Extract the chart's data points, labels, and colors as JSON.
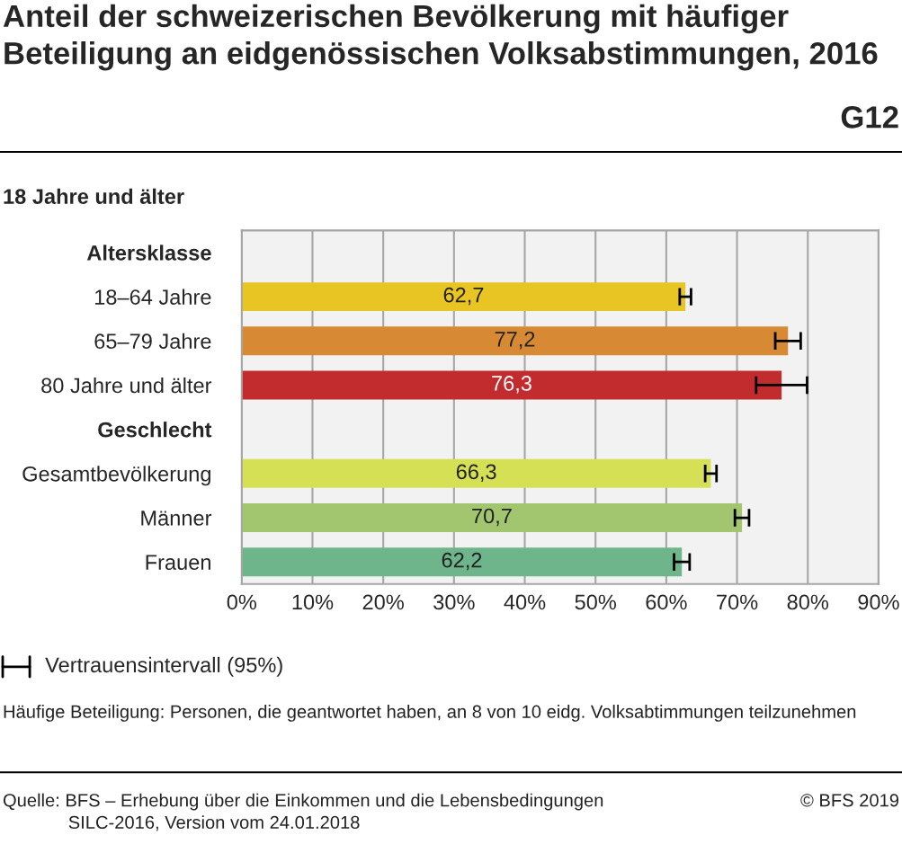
{
  "chart_data": {
    "type": "bar",
    "orientation": "horizontal",
    "title": "Anteil der schweizerischen Bevölkerung mit häufiger Beteiligung an eidgenössischen Volksabstimmungen, 2016",
    "subtitle": "18 Jahre und älter",
    "categories": [
      "Altersklasse",
      "18–64 Jahre",
      "65–79 Jahre",
      "80 Jahre und älter",
      "Geschlecht",
      "Gesamtbevölkerung",
      "Männer",
      "Frauen"
    ],
    "values": [
      null,
      62.7,
      77.2,
      76.3,
      null,
      66.3,
      70.7,
      62.2
    ],
    "colors": [
      "#ffffff",
      "#e8c522",
      "#d78a33",
      "#c22c2f",
      "#ffffff",
      "#d6e055",
      "#a1c66f",
      "#6fb58b"
    ],
    "errors": [
      null,
      0.8,
      1.8,
      3.6,
      null,
      0.8,
      1.0,
      1.1
    ],
    "value_labels": [
      null,
      "62,7",
      "77,2",
      "76,3",
      null,
      "66,3",
      "70,7",
      "62,2"
    ],
    "xlim": [
      0,
      90
    ],
    "xticks": [
      {
        "value": 0,
        "label": "0%"
      },
      {
        "value": 10,
        "label": "10%"
      },
      {
        "value": 20,
        "label": "20%"
      },
      {
        "value": 30,
        "label": "30%"
      },
      {
        "value": 40,
        "label": "40%"
      },
      {
        "value": 50,
        "label": "50%"
      },
      {
        "value": 60,
        "label": "60%"
      },
      {
        "value": 70,
        "label": "70%"
      },
      {
        "value": 80,
        "label": "80%"
      },
      {
        "value": 90,
        "label": "90%"
      }
    ],
    "grid": "x",
    "annotations": [
      "G12",
      "Vertrauensintervall (95%)",
      "Häufige Beteiligung: Personen, die geantwortet haben, an 8 von 10 eidg. Volksabtimmungen teilzunehmen",
      "Quelle: BFS – Erhebung über die Einkommen und die Lebensbedingungen\n             SILC-2016, Version vom 24.01.2018",
      "© BFS 2019"
    ]
  }
}
